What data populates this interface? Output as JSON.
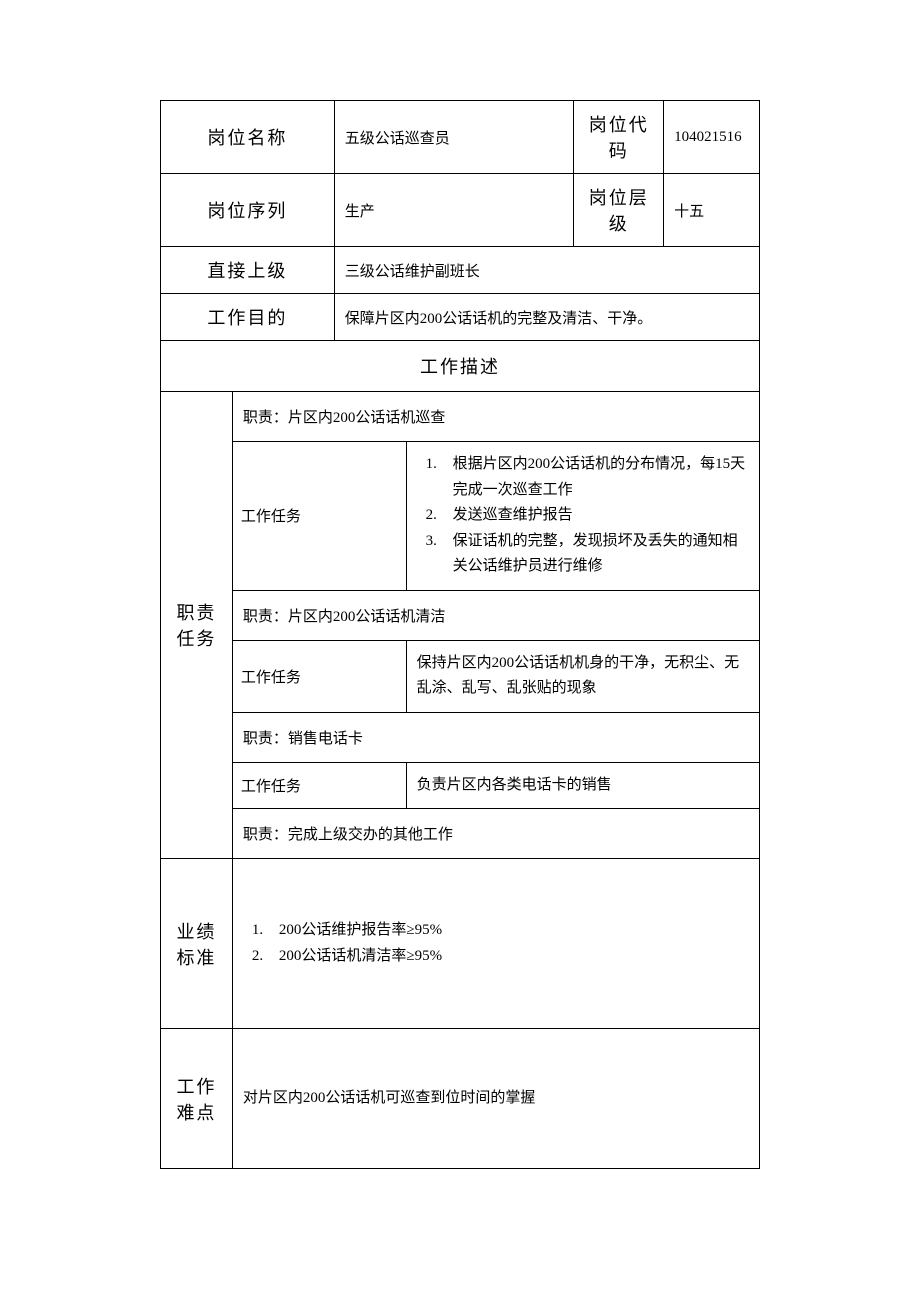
{
  "header": {
    "position_name_label": "岗位名称",
    "position_name_value": "五级公话巡查员",
    "position_code_label": "岗位代码",
    "position_code_value": "104021516",
    "position_series_label": "岗位序列",
    "position_series_value": "生产",
    "position_level_label": "岗位层级",
    "position_level_value": "十五",
    "direct_superior_label": "直接上级",
    "direct_superior_value": "三级公话维护副班长",
    "work_purpose_label": "工作目的",
    "work_purpose_value": "保障片区内200公话话机的完整及清洁、干净。"
  },
  "work_description_title": "工作描述",
  "duties": {
    "section_label": "职责任务",
    "task_label": "工作任务",
    "duty1_title": "职责：片区内200公话话机巡查",
    "duty1_tasks": {
      "t1": "根据片区内200公话话机的分布情况，每15天完成一次巡查工作",
      "t2": "发送巡查维护报告",
      "t3": "保证话机的完整，发现损坏及丢失的通知相关公话维护员进行维修"
    },
    "duty2_title": "职责：片区内200公话话机清洁",
    "duty2_task": "保持片区内200公话话机机身的干净，无积尘、无乱涂、乱写、乱张贴的现象",
    "duty3_title": "职责：销售电话卡",
    "duty3_task": "负责片区内各类电话卡的销售",
    "duty4_title": "职责：完成上级交办的其他工作"
  },
  "performance": {
    "section_label": "业绩标准",
    "items": {
      "p1": "200公话维护报告率≥95%",
      "p2": "200公话话机清洁率≥95%"
    }
  },
  "difficulty": {
    "section_label": "工作难点",
    "content": "对片区内200公话话机可巡查到位时间的掌握"
  },
  "styling": {
    "border_color": "#000000",
    "background": "#ffffff",
    "text_color": "#000000",
    "header_fontsize": 18,
    "body_fontsize": 15,
    "line_height": 1.7
  }
}
